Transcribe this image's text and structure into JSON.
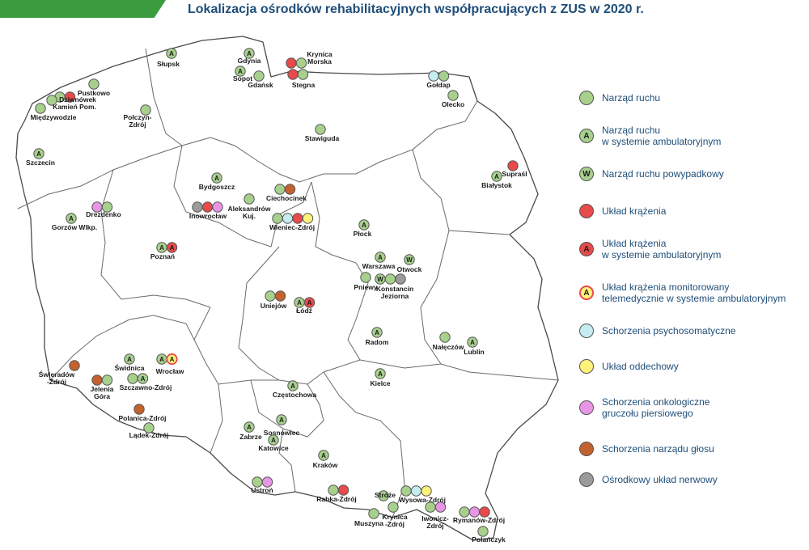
{
  "title": "Lokalizacja ośrodków rehabilitacyjnych współpracujących z ZUS w 2020 r.",
  "colors": {
    "green": "#a8d08d",
    "red": "#e84a4a",
    "cyan": "#c5ecee",
    "yellow": "#fff27a",
    "pink": "#e895e6",
    "brown": "#c4622d",
    "gray": "#9b9b9b",
    "border": "#4a4a4a",
    "header_bar": "#3a9c3e",
    "title": "#1f4e79"
  },
  "legend": [
    {
      "type": "green",
      "letter": "",
      "label": "Narząd ruchu",
      "color": "#a8d08d"
    },
    {
      "type": "green",
      "letter": "A",
      "label": "Narząd ruchu\nw systemie ambulatoryjnym",
      "color": "#a8d08d"
    },
    {
      "type": "green",
      "letter": "W",
      "label": "Narząd ruchu powypadkowy",
      "color": "#a8d08d"
    },
    {
      "type": "red",
      "letter": "",
      "label": "Układ krążenia",
      "color": "#e84a4a"
    },
    {
      "type": "red",
      "letter": "A",
      "label": "Układ krążenia\nw systemie ambulatoryjnym",
      "color": "#e84a4a"
    },
    {
      "type": "yellow",
      "letter": "A",
      "label": "Układ krążenia monitorowany\ntelemedycznie w systemie ambulatoryjnym",
      "color": "#fff27a",
      "ring": "#e84a4a"
    },
    {
      "type": "cyan",
      "letter": "",
      "label": "Schorzenia psychosomatyczne",
      "color": "#c5ecee"
    },
    {
      "type": "yellow",
      "letter": "",
      "label": "Układ oddechowy",
      "color": "#fff27a"
    },
    {
      "type": "pink",
      "letter": "",
      "label": "Schorzenia onkologiczne\ngruczołu piersiowego",
      "color": "#e895e6"
    },
    {
      "type": "brown",
      "letter": "",
      "label": "Schorzenia narządu głosu",
      "color": "#c4622d"
    },
    {
      "type": "gray",
      "letter": "",
      "label": "Ośrodkowy układ nerwowy",
      "color": "#9b9b9b"
    }
  ],
  "cities": [
    {
      "name": "Słupsk",
      "markers": [
        {
          "t": "green",
          "l": "A"
        }
      ]
    },
    {
      "name": "Gdynia",
      "markers": [
        {
          "t": "green",
          "l": "A"
        }
      ]
    },
    {
      "name": "Sopot",
      "markers": [
        {
          "t": "green",
          "l": "A"
        }
      ]
    },
    {
      "name": "Gdańsk",
      "markers": [
        {
          "t": "green",
          "l": ""
        }
      ]
    },
    {
      "name": "Krynica\nMorska",
      "markers": [
        {
          "t": "red",
          "l": ""
        },
        {
          "t": "green",
          "l": ""
        }
      ]
    },
    {
      "name": "Stegna",
      "markers": [
        {
          "t": "red",
          "l": ""
        },
        {
          "t": "green",
          "l": ""
        }
      ]
    },
    {
      "name": "Pustkowo",
      "markers": [
        {
          "t": "green",
          "l": ""
        }
      ]
    },
    {
      "name": "Dziwnówek",
      "markers": [
        {
          "t": "green",
          "l": ""
        },
        {
          "t": "red",
          "l": ""
        }
      ]
    },
    {
      "name": "Kamień Pom.",
      "markers": [
        {
          "t": "green",
          "l": ""
        }
      ]
    },
    {
      "name": "Międzywodzie",
      "markers": [
        {
          "t": "green",
          "l": ""
        }
      ]
    },
    {
      "name": "Połczyn-\nZdrój",
      "markers": [
        {
          "t": "green",
          "l": ""
        }
      ]
    },
    {
      "name": "Stawiguda",
      "markers": [
        {
          "t": "green",
          "l": ""
        }
      ]
    },
    {
      "name": "Gołdap",
      "markers": [
        {
          "t": "cyan",
          "l": ""
        },
        {
          "t": "green",
          "l": ""
        }
      ]
    },
    {
      "name": "Olecko",
      "markers": [
        {
          "t": "green",
          "l": ""
        }
      ]
    },
    {
      "name": "Szczecin",
      "markers": [
        {
          "t": "green",
          "l": "A"
        }
      ]
    },
    {
      "name": "Supraśl",
      "markers": [
        {
          "t": "red",
          "l": ""
        }
      ]
    },
    {
      "name": "Białystok",
      "markers": [
        {
          "t": "green",
          "l": "A"
        }
      ]
    },
    {
      "name": "Bydgoszcz",
      "markers": [
        {
          "t": "green",
          "l": "A"
        }
      ]
    },
    {
      "name": "Ciechocinek",
      "markers": [
        {
          "t": "green",
          "l": ""
        },
        {
          "t": "brown",
          "l": ""
        }
      ]
    },
    {
      "name": "Aleksandrów\nKuj.",
      "markers": [
        {
          "t": "green",
          "l": ""
        }
      ]
    },
    {
      "name": "Inowrocław",
      "markers": [
        {
          "t": "gray",
          "l": ""
        },
        {
          "t": "red",
          "l": ""
        },
        {
          "t": "pink",
          "l": ""
        }
      ]
    },
    {
      "name": "Wieniec-Zdrój",
      "markers": [
        {
          "t": "green",
          "l": ""
        },
        {
          "t": "cyan",
          "l": ""
        },
        {
          "t": "red",
          "l": ""
        },
        {
          "t": "yellow",
          "l": ""
        }
      ]
    },
    {
      "name": "Drezdenko",
      "markers": [
        {
          "t": "pink",
          "l": ""
        },
        {
          "t": "green",
          "l": ""
        }
      ]
    },
    {
      "name": "Gorzów Wlkp.",
      "markers": [
        {
          "t": "green",
          "l": "A"
        }
      ]
    },
    {
      "name": "Płock",
      "markers": [
        {
          "t": "green",
          "l": "A"
        }
      ]
    },
    {
      "name": "Poznań",
      "markers": [
        {
          "t": "green",
          "l": "A"
        },
        {
          "t": "red",
          "l": "A"
        }
      ]
    },
    {
      "name": "Warszawa",
      "markers": [
        {
          "t": "green",
          "l": "A"
        }
      ]
    },
    {
      "name": "Otwock",
      "markers": [
        {
          "t": "green",
          "l": "W"
        }
      ]
    },
    {
      "name": "Pniewy",
      "markers": [
        {
          "t": "green",
          "l": ""
        }
      ]
    },
    {
      "name": "Konstancin\nJeziorna",
      "markers": [
        {
          "t": "green",
          "l": "W"
        },
        {
          "t": "green",
          "l": ""
        },
        {
          "t": "gray",
          "l": ""
        }
      ]
    },
    {
      "name": "Uniejów",
      "markers": [
        {
          "t": "green",
          "l": ""
        },
        {
          "t": "brown",
          "l": ""
        }
      ]
    },
    {
      "name": "Łódź",
      "markers": [
        {
          "t": "green",
          "l": "A"
        },
        {
          "t": "red",
          "l": "A"
        }
      ]
    },
    {
      "name": "Radom",
      "markers": [
        {
          "t": "green",
          "l": "A"
        }
      ]
    },
    {
      "name": "Nałęczów",
      "markers": [
        {
          "t": "green",
          "l": ""
        }
      ]
    },
    {
      "name": "Lublin",
      "markers": [
        {
          "t": "green",
          "l": "A"
        }
      ]
    },
    {
      "name": "Świeradów\n-Zdrój",
      "markers": [
        {
          "t": "brown",
          "l": ""
        }
      ]
    },
    {
      "name": "Świdnica",
      "markers": [
        {
          "t": "green",
          "l": "A"
        }
      ]
    },
    {
      "name": "Wrocław",
      "markers": [
        {
          "t": "green",
          "l": "A"
        },
        {
          "t": "yellowred",
          "l": "A"
        }
      ]
    },
    {
      "name": "Jelenia\nGóra",
      "markers": [
        {
          "t": "brown",
          "l": ""
        },
        {
          "t": "green",
          "l": ""
        }
      ]
    },
    {
      "name": "Szczawno-Zdrój",
      "markers": [
        {
          "t": "green",
          "l": ""
        },
        {
          "t": "green",
          "l": "A"
        }
      ]
    },
    {
      "name": "Kielce",
      "markers": [
        {
          "t": "green",
          "l": "A"
        }
      ]
    },
    {
      "name": "Polanica-Zdrój",
      "markers": [
        {
          "t": "brown",
          "l": ""
        }
      ]
    },
    {
      "name": "Częstochowa",
      "markers": [
        {
          "t": "green",
          "l": "A"
        }
      ]
    },
    {
      "name": "Lądek-Zdrój",
      "markers": [
        {
          "t": "green",
          "l": ""
        }
      ]
    },
    {
      "name": "Sosnowiec",
      "markers": [
        {
          "t": "green",
          "l": "A"
        }
      ]
    },
    {
      "name": "Zabrze",
      "markers": [
        {
          "t": "green",
          "l": "A"
        }
      ]
    },
    {
      "name": "Katowice",
      "markers": [
        {
          "t": "green",
          "l": "A"
        }
      ]
    },
    {
      "name": "Kraków",
      "markers": [
        {
          "t": "green",
          "l": "A"
        }
      ]
    },
    {
      "name": "Ustroń",
      "markers": [
        {
          "t": "green",
          "l": ""
        },
        {
          "t": "pink",
          "l": ""
        }
      ]
    },
    {
      "name": "Stróże",
      "markers": [
        {
          "t": "green",
          "l": ""
        }
      ]
    },
    {
      "name": "Rabka-Zdrój",
      "markers": [
        {
          "t": "green",
          "l": ""
        },
        {
          "t": "red",
          "l": ""
        }
      ]
    },
    {
      "name": "Wysowa-Zdrój",
      "markers": [
        {
          "t": "green",
          "l": ""
        },
        {
          "t": "cyan",
          "l": ""
        },
        {
          "t": "yellow",
          "l": ""
        }
      ]
    },
    {
      "name": "Muszyna",
      "markers": [
        {
          "t": "green",
          "l": ""
        }
      ]
    },
    {
      "name": "Krynica\n-Zdrój",
      "markers": [
        {
          "t": "green",
          "l": ""
        }
      ]
    },
    {
      "name": "Iwonicz-\nZdrój",
      "markers": [
        {
          "t": "green",
          "l": ""
        },
        {
          "t": "pink",
          "l": ""
        }
      ]
    },
    {
      "name": "Rymanów-Zdrój",
      "markers": [
        {
          "t": "green",
          "l": ""
        },
        {
          "t": "pink",
          "l": ""
        },
        {
          "t": "red",
          "l": ""
        }
      ]
    },
    {
      "name": "Polańczyk",
      "markers": [
        {
          "t": "green",
          "l": ""
        }
      ]
    }
  ]
}
